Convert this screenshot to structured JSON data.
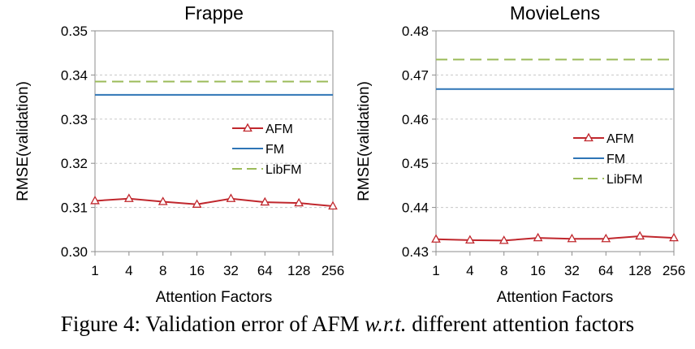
{
  "chart_data": [
    {
      "type": "line",
      "title": "Frappe",
      "xlabel": "Attention Factors",
      "ylabel": "RMSE(validation)",
      "categories": [
        "1",
        "4",
        "8",
        "16",
        "32",
        "64",
        "128",
        "256"
      ],
      "ylim": [
        0.3,
        0.35
      ],
      "yticks": [
        "0.30",
        "0.31",
        "0.32",
        "0.33",
        "0.34",
        "0.35"
      ],
      "grid": "horizontal-dashed",
      "legend_position": "right-middle",
      "series": [
        {
          "name": "AFM",
          "style": "line-triangle",
          "color": "#C0272D",
          "values": [
            0.3115,
            0.312,
            0.3113,
            0.3107,
            0.312,
            0.3112,
            0.311,
            0.3103
          ]
        },
        {
          "name": "FM",
          "style": "solid",
          "color": "#2E75B6",
          "values": [
            0.3355,
            0.3355,
            0.3355,
            0.3355,
            0.3355,
            0.3355,
            0.3355,
            0.3355
          ]
        },
        {
          "name": "LibFM",
          "style": "dashed",
          "color": "#9BBB59",
          "values": [
            0.3385,
            0.3385,
            0.3385,
            0.3385,
            0.3385,
            0.3385,
            0.3385,
            0.3385
          ]
        }
      ]
    },
    {
      "type": "line",
      "title": "MovieLens",
      "xlabel": "Attention Factors",
      "ylabel": "RMSE(validation)",
      "categories": [
        "1",
        "4",
        "8",
        "16",
        "32",
        "64",
        "128",
        "256"
      ],
      "ylim": [
        0.43,
        0.48
      ],
      "yticks": [
        "0.43",
        "0.44",
        "0.45",
        "0.46",
        "0.47",
        "0.48"
      ],
      "grid": "horizontal-dashed",
      "legend_position": "right-middle",
      "series": [
        {
          "name": "AFM",
          "style": "line-triangle",
          "color": "#C0272D",
          "values": [
            0.4328,
            0.4326,
            0.4325,
            0.4331,
            0.4329,
            0.4329,
            0.4335,
            0.4331
          ]
        },
        {
          "name": "FM",
          "style": "solid",
          "color": "#2E75B6",
          "values": [
            0.4668,
            0.4668,
            0.4668,
            0.4668,
            0.4668,
            0.4668,
            0.4668,
            0.4668
          ]
        },
        {
          "name": "LibFM",
          "style": "dashed",
          "color": "#9BBB59",
          "values": [
            0.4735,
            0.4735,
            0.4735,
            0.4735,
            0.4735,
            0.4735,
            0.4735,
            0.4735
          ]
        }
      ]
    }
  ],
  "caption": {
    "prefix": "Figure 4: Validation error of AFM ",
    "emphasis": "w.r.t.",
    "suffix": " different attention factors"
  }
}
